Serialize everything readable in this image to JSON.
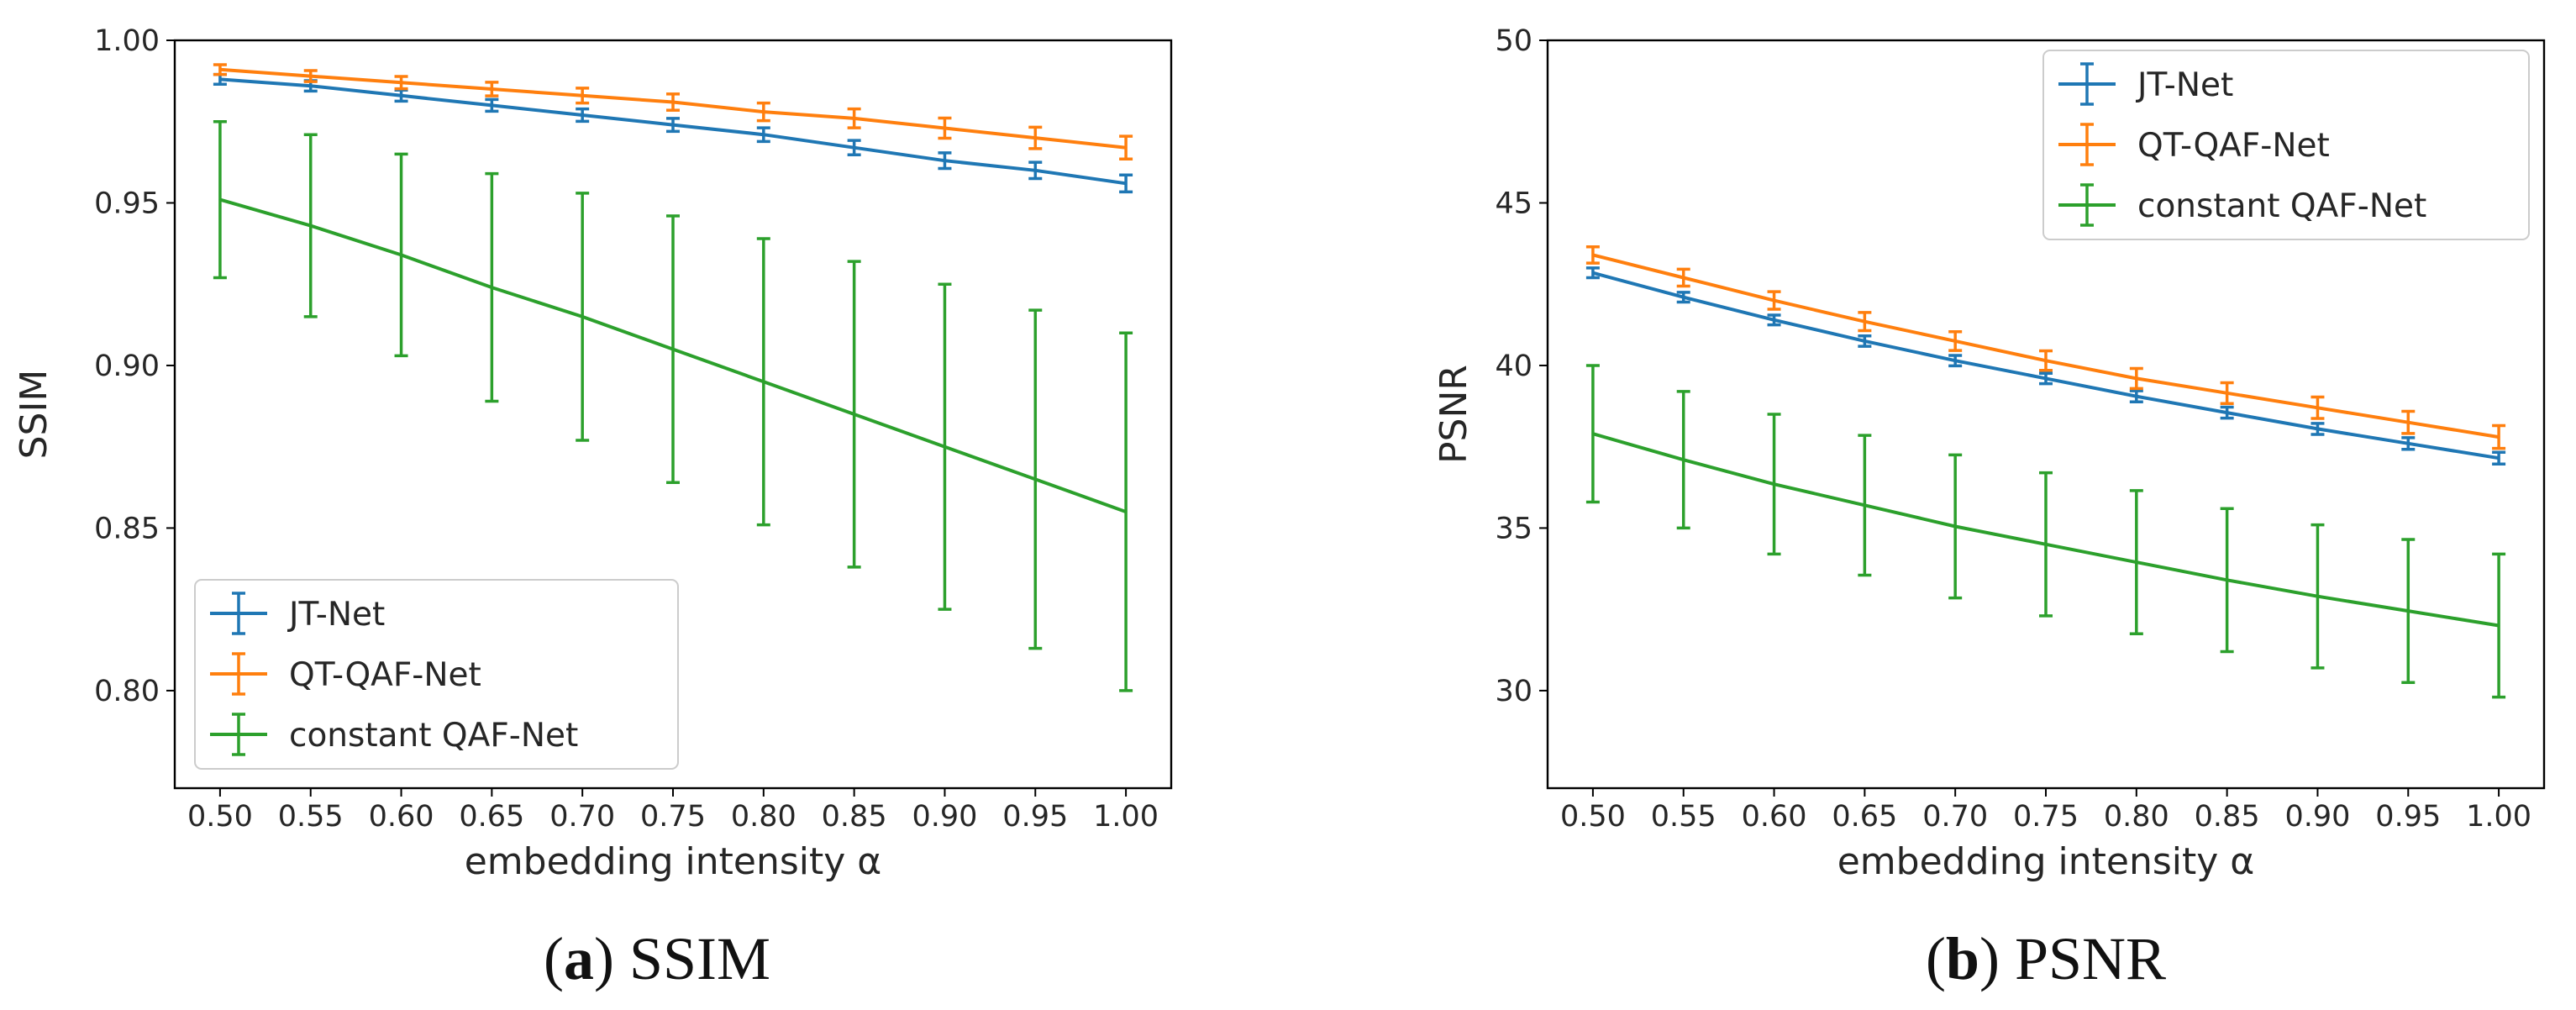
{
  "chart_data": [
    {
      "type": "line",
      "panel": "a",
      "caption": {
        "letter": "a",
        "text": "SSIM"
      },
      "xlabel": "embedding intensity α",
      "ylabel": "SSIM",
      "xlim": [
        0.475,
        1.025
      ],
      "ylim": [
        0.77,
        1.0
      ],
      "xticks": [
        "0.50",
        "0.55",
        "0.60",
        "0.65",
        "0.70",
        "0.75",
        "0.80",
        "0.85",
        "0.90",
        "0.95",
        "1.00"
      ],
      "yticks": [
        "0.80",
        "0.85",
        "0.90",
        "0.95",
        "1.00"
      ],
      "x": [
        0.5,
        0.55,
        0.6,
        0.65,
        0.7,
        0.75,
        0.8,
        0.85,
        0.9,
        0.95,
        1.0
      ],
      "legend_position": "lower-left",
      "series": [
        {
          "name": "JT-Net",
          "color": "#1f77b4",
          "values": [
            0.988,
            0.986,
            0.983,
            0.98,
            0.977,
            0.974,
            0.971,
            0.967,
            0.963,
            0.96,
            0.956
          ],
          "errors": [
            0.0015,
            0.0016,
            0.0017,
            0.0018,
            0.0019,
            0.002,
            0.0021,
            0.0022,
            0.0024,
            0.0025,
            0.0026
          ]
        },
        {
          "name": "QT-QAF-Net",
          "color": "#ff7f0e",
          "values": [
            0.991,
            0.989,
            0.987,
            0.985,
            0.983,
            0.981,
            0.978,
            0.976,
            0.973,
            0.97,
            0.967
          ],
          "errors": [
            0.0015,
            0.0017,
            0.0019,
            0.0021,
            0.0023,
            0.0025,
            0.0027,
            0.0029,
            0.0031,
            0.0033,
            0.0035
          ]
        },
        {
          "name": "constant QAF-Net",
          "color": "#2ca02c",
          "values": [
            0.951,
            0.943,
            0.934,
            0.924,
            0.915,
            0.905,
            0.895,
            0.885,
            0.875,
            0.865,
            0.855
          ],
          "errors": [
            0.024,
            0.028,
            0.031,
            0.035,
            0.038,
            0.041,
            0.044,
            0.047,
            0.05,
            0.052,
            0.055
          ]
        }
      ]
    },
    {
      "type": "line",
      "panel": "b",
      "caption": {
        "letter": "b",
        "text": "PSNR"
      },
      "xlabel": "embedding intensity α",
      "ylabel": "PSNR",
      "xlim": [
        0.475,
        1.025
      ],
      "ylim": [
        27,
        50
      ],
      "xticks": [
        "0.50",
        "0.55",
        "0.60",
        "0.65",
        "0.70",
        "0.75",
        "0.80",
        "0.85",
        "0.90",
        "0.95",
        "1.00"
      ],
      "yticks": [
        "30",
        "35",
        "40",
        "45",
        "50"
      ],
      "x": [
        0.5,
        0.55,
        0.6,
        0.65,
        0.7,
        0.75,
        0.8,
        0.85,
        0.9,
        0.95,
        1.0
      ],
      "legend_position": "upper-right",
      "series": [
        {
          "name": "JT-Net",
          "color": "#1f77b4",
          "values": [
            42.85,
            42.1,
            41.4,
            40.75,
            40.15,
            39.6,
            39.05,
            38.55,
            38.05,
            37.6,
            37.15
          ],
          "errors": [
            0.15,
            0.15,
            0.15,
            0.16,
            0.16,
            0.16,
            0.17,
            0.17,
            0.17,
            0.18,
            0.18
          ]
        },
        {
          "name": "QT-QAF-Net",
          "color": "#ff7f0e",
          "values": [
            43.4,
            42.7,
            42.0,
            41.35,
            40.75,
            40.15,
            39.6,
            39.15,
            38.7,
            38.25,
            37.8
          ],
          "errors": [
            0.25,
            0.26,
            0.27,
            0.28,
            0.29,
            0.3,
            0.31,
            0.32,
            0.33,
            0.34,
            0.35
          ]
        },
        {
          "name": "constant QAF-Net",
          "color": "#2ca02c",
          "values": [
            37.9,
            37.1,
            36.35,
            35.7,
            35.05,
            34.5,
            33.95,
            33.4,
            32.9,
            32.45,
            32.0
          ],
          "errors": [
            2.1,
            2.1,
            2.15,
            2.15,
            2.2,
            2.2,
            2.2,
            2.2,
            2.2,
            2.2,
            2.2
          ]
        }
      ]
    }
  ]
}
